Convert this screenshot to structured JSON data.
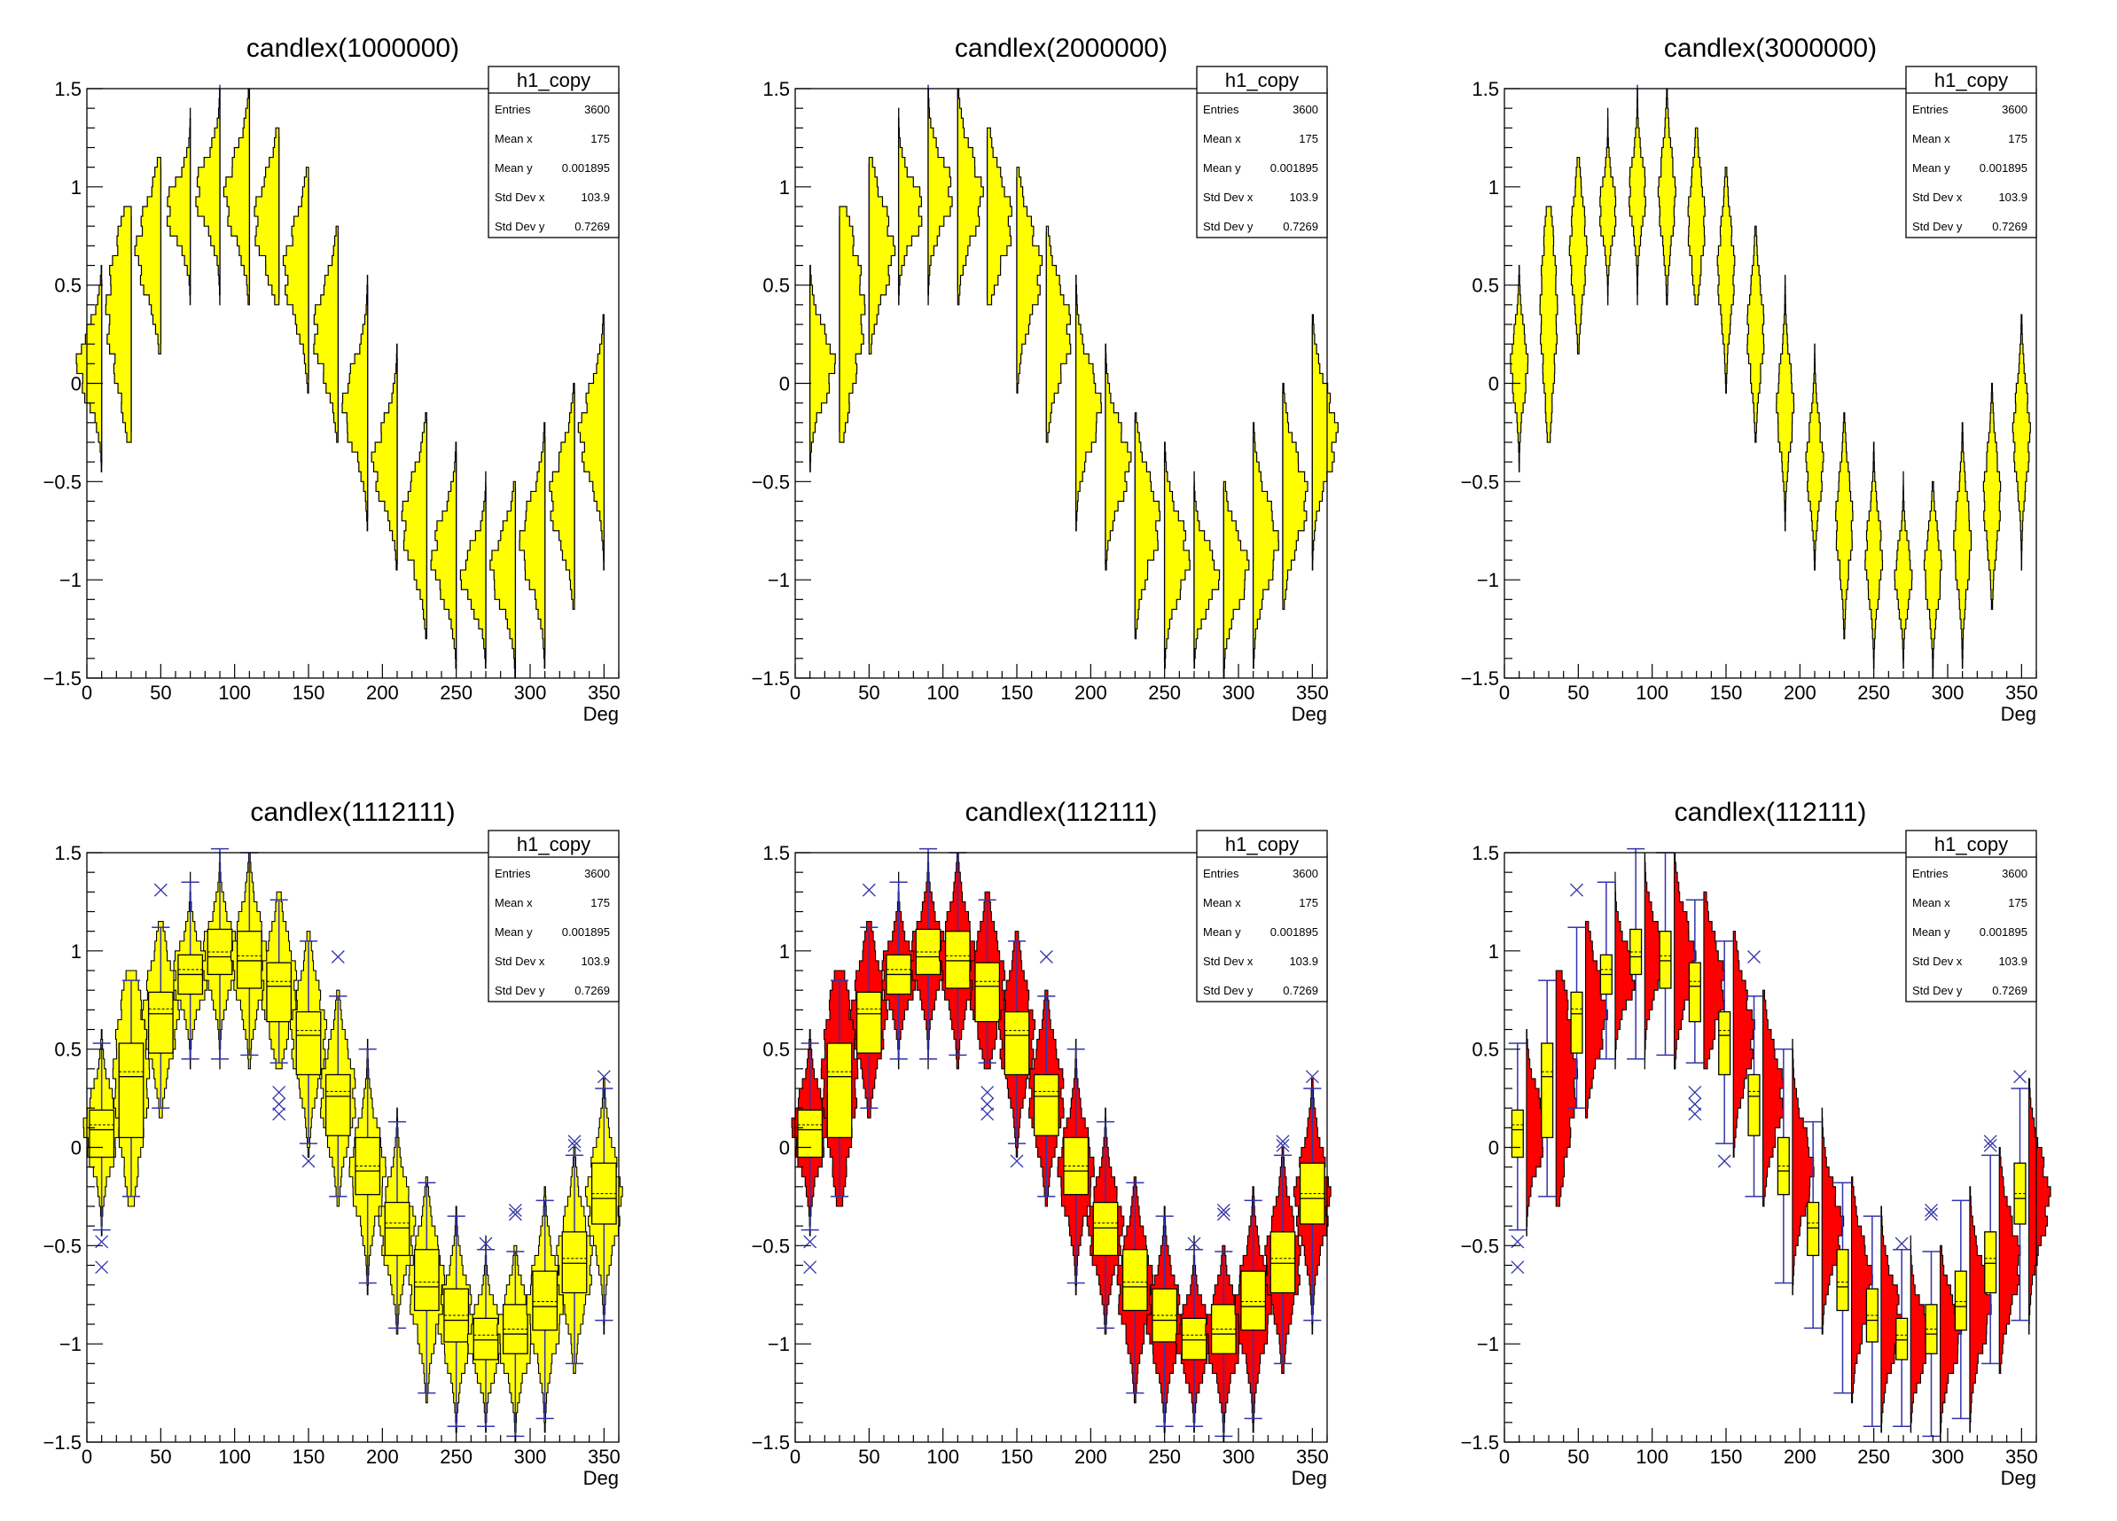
{
  "chart_data": [
    {
      "type": "candle",
      "title": "candlex(1000000)",
      "xlabel": "Deg",
      "ylabel": "",
      "xlim": [
        0,
        360
      ],
      "ylim": [
        -1.5,
        1.5
      ],
      "x_ticks": [
        "0",
        "50",
        "100",
        "150",
        "200",
        "250",
        "300",
        "350"
      ],
      "y_ticks": [
        "1.5",
        "1",
        "0.5",
        "0",
        "−0.5",
        "−1",
        "−1.5"
      ],
      "style": "violin",
      "stats": {
        "name": "h1_copy",
        "rows": [
          [
            "Entries",
            "3600"
          ],
          [
            "Mean x",
            "175"
          ],
          [
            "Mean y",
            "0.001895"
          ],
          [
            "Std Dev x",
            "103.9"
          ],
          [
            "Std Dev y",
            "0.7269"
          ]
        ]
      }
    },
    {
      "type": "candle",
      "title": "candlex(2000000)",
      "xlabel": "Deg",
      "ylabel": "",
      "xlim": [
        0,
        360
      ],
      "ylim": [
        -1.5,
        1.5
      ],
      "x_ticks": [
        "0",
        "50",
        "100",
        "150",
        "200",
        "250",
        "300",
        "350"
      ],
      "y_ticks": [
        "1.5",
        "1",
        "0.5",
        "0",
        "−0.5",
        "−1",
        "−1.5"
      ],
      "style": "violin-right",
      "stats": {
        "name": "h1_copy",
        "rows": [
          [
            "Entries",
            "3600"
          ],
          [
            "Mean x",
            "175"
          ],
          [
            "Mean y",
            "0.001895"
          ],
          [
            "Std Dev x",
            "103.9"
          ],
          [
            "Std Dev y",
            "0.7269"
          ]
        ]
      }
    },
    {
      "type": "candle",
      "title": "candlex(3000000)",
      "xlabel": "Deg",
      "ylabel": "",
      "xlim": [
        0,
        360
      ],
      "ylim": [
        -1.5,
        1.5
      ],
      "x_ticks": [
        "0",
        "50",
        "100",
        "150",
        "200",
        "250",
        "300",
        "350"
      ],
      "y_ticks": [
        "1.5",
        "1",
        "0.5",
        "0",
        "−0.5",
        "−1",
        "−1.5"
      ],
      "style": "violin-sym",
      "stats": {
        "name": "h1_copy",
        "rows": [
          [
            "Entries",
            "3600"
          ],
          [
            "Mean x",
            "175"
          ],
          [
            "Mean y",
            "0.001895"
          ],
          [
            "Std Dev x",
            "103.9"
          ],
          [
            "Std Dev y",
            "0.7269"
          ]
        ]
      }
    },
    {
      "type": "candle",
      "title": "candlex(1112111)",
      "xlabel": "Deg",
      "ylabel": "",
      "xlim": [
        0,
        360
      ],
      "ylim": [
        -1.5,
        1.5
      ],
      "x_ticks": [
        "0",
        "50",
        "100",
        "150",
        "200",
        "250",
        "300",
        "350"
      ],
      "y_ticks": [
        "1.5",
        "1",
        "0.5",
        "0",
        "−0.5",
        "−1",
        "−1.5"
      ],
      "style": "box-violin",
      "stats": {
        "name": "h1_copy",
        "rows": [
          [
            "Entries",
            "3600"
          ],
          [
            "Mean x",
            "175"
          ],
          [
            "Mean y",
            "0.001895"
          ],
          [
            "Std Dev x",
            "103.9"
          ],
          [
            "Std Dev y",
            "0.7269"
          ]
        ]
      }
    },
    {
      "type": "candle",
      "title": "candlex(112111)",
      "xlabel": "Deg",
      "ylabel": "",
      "xlim": [
        0,
        360
      ],
      "ylim": [
        -1.5,
        1.5
      ],
      "x_ticks": [
        "0",
        "50",
        "100",
        "150",
        "200",
        "250",
        "300",
        "350"
      ],
      "y_ticks": [
        "1.5",
        "1",
        "0.5",
        "0",
        "−0.5",
        "−1",
        "−1.5"
      ],
      "style": "box-red",
      "stats": {
        "name": "h1_copy",
        "rows": [
          [
            "Entries",
            "3600"
          ],
          [
            "Mean x",
            "175"
          ],
          [
            "Mean y",
            "0.001895"
          ],
          [
            "Std Dev x",
            "103.9"
          ],
          [
            "Std Dev y",
            "0.7269"
          ]
        ]
      }
    },
    {
      "type": "candle",
      "title": "candlex(112111)",
      "xlabel": "Deg",
      "ylabel": "",
      "xlim": [
        0,
        360
      ],
      "ylim": [
        -1.5,
        1.5
      ],
      "x_ticks": [
        "0",
        "50",
        "100",
        "150",
        "200",
        "250",
        "300",
        "350"
      ],
      "y_ticks": [
        "1.5",
        "1",
        "0.5",
        "0",
        "−0.5",
        "−1",
        "−1.5"
      ],
      "style": "box-red-narrow",
      "stats": {
        "name": "h1_copy",
        "rows": [
          [
            "Entries",
            "3600"
          ],
          [
            "Mean x",
            "175"
          ],
          [
            "Mean y",
            "0.001895"
          ],
          [
            "Std Dev x",
            "103.9"
          ],
          [
            "Std Dev y",
            "0.7269"
          ]
        ]
      }
    }
  ],
  "candles": {
    "x": [
      10,
      30,
      50,
      70,
      90,
      110,
      130,
      150,
      170,
      190,
      210,
      230,
      250,
      270,
      290,
      310,
      330,
      350
    ],
    "median": [
      0.09,
      0.36,
      0.68,
      0.88,
      0.97,
      0.95,
      0.82,
      0.57,
      0.26,
      -0.12,
      -0.41,
      -0.71,
      -0.88,
      -0.98,
      -0.95,
      -0.81,
      -0.59,
      -0.26
    ],
    "q1": [
      -0.05,
      0.05,
      0.48,
      0.78,
      0.88,
      0.81,
      0.64,
      0.37,
      0.06,
      -0.24,
      -0.55,
      -0.83,
      -0.99,
      -1.08,
      -1.05,
      -0.93,
      -0.74,
      -0.39
    ],
    "q3": [
      0.19,
      0.53,
      0.79,
      0.98,
      1.11,
      1.1,
      0.94,
      0.69,
      0.37,
      0.05,
      -0.28,
      -0.52,
      -0.72,
      -0.87,
      -0.8,
      -0.63,
      -0.43,
      -0.08
    ],
    "whisker_low": [
      -0.42,
      -0.25,
      0.2,
      0.45,
      0.45,
      0.47,
      0.43,
      0.02,
      -0.25,
      -0.69,
      -0.92,
      -1.25,
      -1.42,
      -1.42,
      -1.47,
      -1.38,
      -1.1,
      -0.88
    ],
    "whisker_high": [
      0.53,
      0.85,
      1.12,
      1.35,
      1.52,
      1.5,
      1.26,
      1.05,
      0.77,
      0.5,
      0.13,
      -0.18,
      -0.35,
      -0.52,
      -0.53,
      -0.27,
      -0.04,
      0.3
    ],
    "outliers": [
      [
        -0.48,
        -0.61
      ],
      [],
      [
        1.31
      ],
      [],
      [],
      [],
      [
        0.28,
        0.22,
        0.17
      ],
      [
        -0.07
      ],
      [
        0.97
      ],
      [],
      [],
      [],
      [],
      [
        -0.49
      ],
      [
        -0.32,
        -0.34
      ],
      [],
      [
        0.03,
        0.01
      ],
      [
        0.36
      ]
    ]
  },
  "colors": {
    "fill": "#ffff00",
    "violin_red": "#ff0000",
    "whisker": "#3333aa",
    "outline": "#000000"
  }
}
